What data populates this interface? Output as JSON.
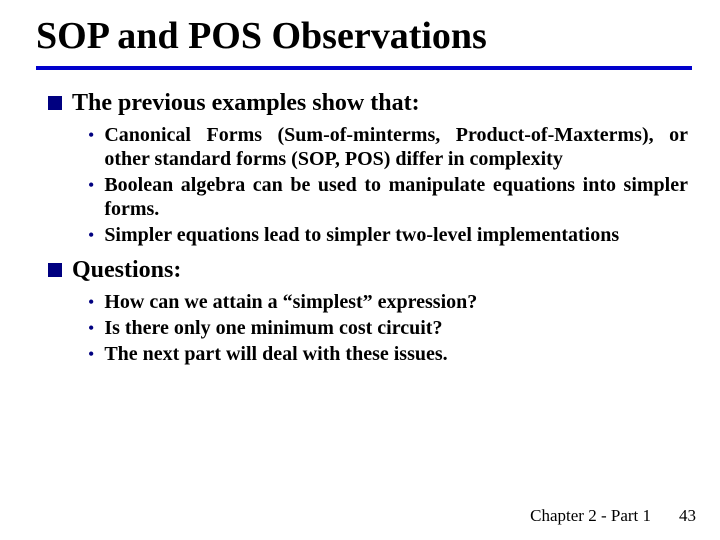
{
  "colors": {
    "rule": "#0000cc",
    "bullet_square": "#000080",
    "bullet_dot": "#000080",
    "text": "#000000",
    "background": "#ffffff"
  },
  "title": "SOP and POS Observations",
  "sections": [
    {
      "heading": "The previous examples show that:",
      "items": [
        "Canonical Forms (Sum-of-minterms, Product-of-Maxterms), or other standard forms (SOP, POS) differ in complexity",
        "Boolean algebra can be used to manipulate equations into simpler forms.",
        "Simpler equations lead to simpler two-level implementations"
      ]
    },
    {
      "heading": "Questions:",
      "items": [
        "How can we attain a “simplest” expression?",
        "Is there only one minimum cost circuit?",
        "The next part will deal with these issues."
      ]
    }
  ],
  "footer": {
    "chapter": "Chapter 2 - Part 1",
    "page": "43"
  }
}
